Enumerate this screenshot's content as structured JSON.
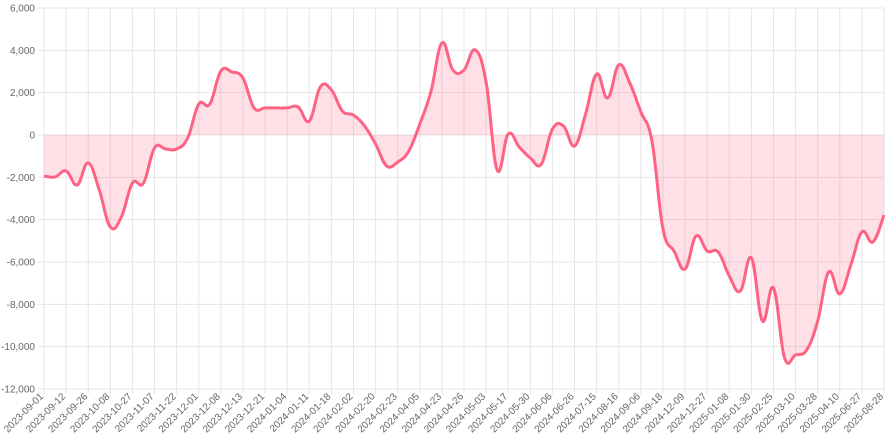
{
  "chart_data": {
    "type": "line",
    "categories": [
      "2023-09-01",
      null,
      "2023-09-12",
      null,
      "2023-09-26",
      null,
      "2023-10-08",
      null,
      "2023-10-27",
      null,
      "2023-11-07",
      null,
      "2023-11-22",
      null,
      "2023-12-01",
      null,
      "2023-12-08",
      null,
      "2023-12-13",
      null,
      "2023-12-21",
      null,
      "2024-01-04",
      null,
      "2024-01-11",
      null,
      "2024-01-18",
      null,
      "2024-02-02",
      null,
      "2024-02-20",
      null,
      "2024-02-23",
      null,
      "2024-04-05",
      null,
      "2024-04-23",
      null,
      "2024-04-26",
      null,
      "2024-05-03",
      null,
      "2024-05-17",
      null,
      "2024-05-30",
      null,
      "2024-06-06",
      null,
      "2024-06-26",
      null,
      "2024-07-15",
      null,
      "2024-08-16",
      null,
      "2024-09-06",
      null,
      "2024-09-18",
      null,
      "2024-12-09",
      null,
      "2024-12-27",
      null,
      "2025-01-08",
      null,
      "2025-01-30",
      null,
      "2025-02-25",
      null,
      "2025-03-10",
      null,
      "2025-03-28",
      null,
      "2025-04-10",
      null,
      "2025-06-27",
      null,
      "2025-08-28"
    ],
    "series": [
      {
        "color": "#ff6384",
        "fill": "rgba(255,99,132,0.2)",
        "values": [
          -1940,
          -1980,
          -1700,
          -2360,
          -1320,
          -2600,
          -4350,
          -3870,
          -2270,
          -2270,
          -610,
          -660,
          -660,
          -140,
          1460,
          1460,
          3020,
          2980,
          2690,
          1280,
          1280,
          1280,
          1280,
          1320,
          660,
          2270,
          2130,
          1130,
          940,
          430,
          -430,
          -1460,
          -1280,
          -760,
          520,
          2030,
          4350,
          3070,
          3070,
          4020,
          2500,
          -1650,
          50,
          -570,
          -1090,
          -1370,
          280,
          430,
          -520,
          990,
          2880,
          1750,
          3310,
          2460,
          1090,
          -280,
          -4440,
          -5480,
          -6330,
          -4770,
          -5480,
          -5530,
          -6660,
          -7370,
          -5810,
          -8790,
          -7230,
          -10530,
          -10390,
          -10160,
          -8790,
          -6470,
          -7510,
          -6140,
          -4580,
          -5050,
          -3780
        ]
      }
    ],
    "ylim": [
      -12000,
      6000
    ],
    "yticks": [
      {
        "value": -12000,
        "label": "-12,000"
      },
      {
        "value": -10000,
        "label": "-10,000"
      },
      {
        "value": -8000,
        "label": "-8,000"
      },
      {
        "value": -6000,
        "label": "-6,000"
      },
      {
        "value": -4000,
        "label": "-4,000"
      },
      {
        "value": -2000,
        "label": "-2,000"
      },
      0,
      {
        "value": 2000,
        "label": "2,000"
      },
      {
        "value": 4000,
        "label": "4,000"
      },
      {
        "value": 6000,
        "label": "6,000"
      }
    ],
    "grid": true
  }
}
